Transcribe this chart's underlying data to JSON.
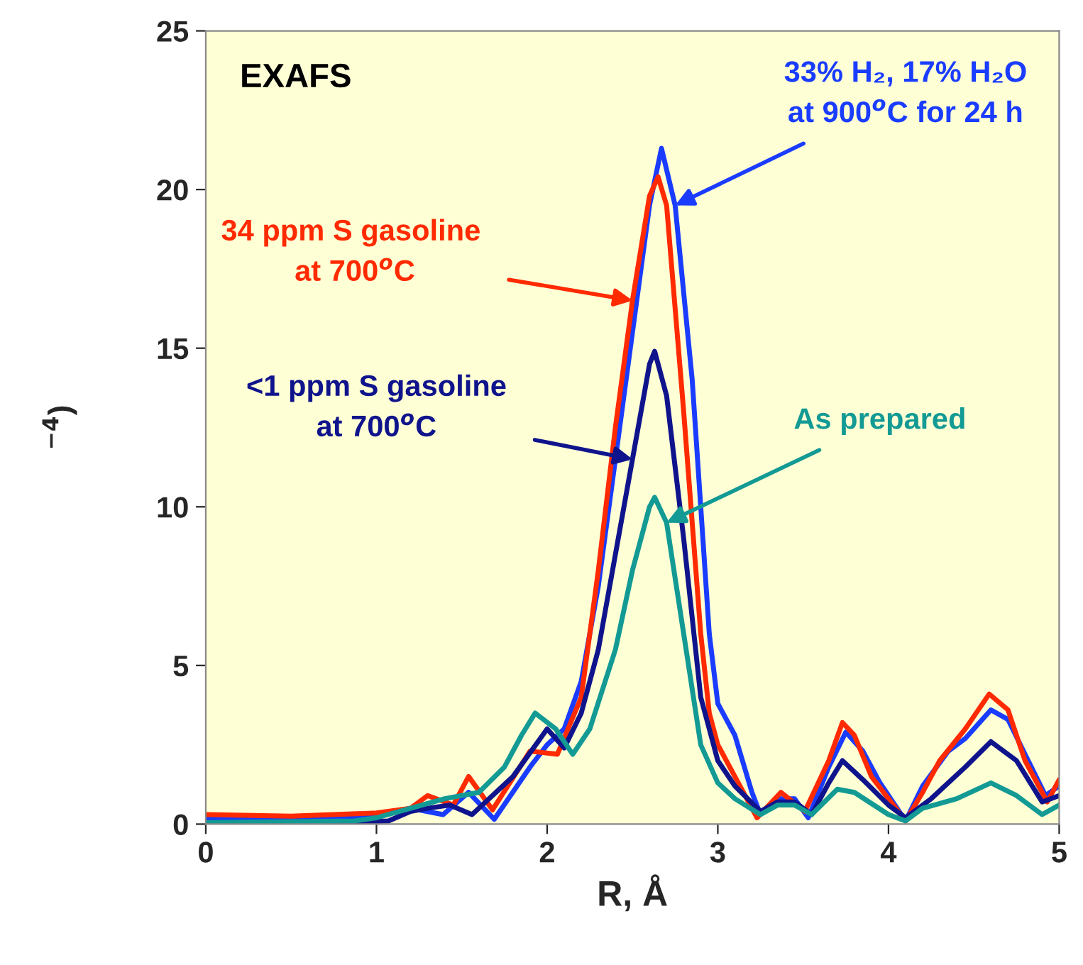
{
  "chart_data": {
    "type": "line",
    "xlabel": "R, Å",
    "ylabel": "$^{−4}$)",
    "xlim": [
      0,
      5
    ],
    "xticks": [
      0,
      1,
      2,
      3,
      4,
      5
    ],
    "ylim": [
      0,
      25
    ],
    "yticks": [
      0,
      5,
      10,
      15,
      20,
      25
    ],
    "grid": false,
    "marker": "none",
    "line_style": "solid",
    "series": [
      {
        "color": "#1a3cff",
        "x": [
          0,
          0.5,
          0.9,
          1.0,
          1.2,
          1.39,
          1.54,
          1.69,
          1.9,
          2.0,
          2.1,
          2.2,
          2.3,
          2.4,
          2.5,
          2.6,
          2.67,
          2.75,
          2.85,
          2.95,
          3.0,
          3.1,
          3.2,
          3.25,
          3.35,
          3.45,
          3.53,
          3.65,
          3.75,
          3.85,
          3.95,
          4.1,
          4.2,
          4.35,
          4.45,
          4.6,
          4.7,
          4.8,
          4.92,
          5.0
        ],
        "values": [
          0.2,
          0.2,
          0.2,
          0.3,
          0.5,
          0.3,
          1.0,
          0.15,
          1.8,
          2.5,
          3.0,
          4.5,
          7.5,
          11.5,
          15.5,
          19.5,
          21.3,
          19.5,
          14,
          6,
          3.8,
          2.8,
          1.0,
          0.3,
          0.8,
          0.8,
          0.2,
          1.8,
          2.9,
          2.3,
          1.3,
          0.1,
          1.2,
          2.3,
          2.7,
          3.6,
          3.3,
          2.2,
          0.9,
          1.2
        ]
      },
      {
        "color": "#ff2a00",
        "x": [
          0,
          0.5,
          1.0,
          1.2,
          1.3,
          1.45,
          1.54,
          1.68,
          1.9,
          2.06,
          2.2,
          2.3,
          2.4,
          2.5,
          2.6,
          2.65,
          2.7,
          2.8,
          2.9,
          2.95,
          3.0,
          3.1,
          3.23,
          3.37,
          3.51,
          3.65,
          3.73,
          3.8,
          3.9,
          4.0,
          4.1,
          4.2,
          4.3,
          4.45,
          4.59,
          4.7,
          4.8,
          4.93,
          5.0
        ],
        "values": [
          0.3,
          0.25,
          0.35,
          0.5,
          0.9,
          0.6,
          1.5,
          0.45,
          2.3,
          2.2,
          4,
          8,
          12.5,
          16.5,
          19.8,
          20.4,
          19.5,
          13,
          6,
          3.5,
          2.5,
          1.5,
          0.2,
          1.0,
          0.4,
          2.0,
          3.2,
          2.8,
          1.5,
          0.8,
          0.1,
          1.0,
          2.0,
          3.0,
          4.1,
          3.6,
          2.0,
          0.7,
          1.4
        ]
      },
      {
        "color": "#10148c",
        "x": [
          0,
          0.8,
          1.07,
          1.2,
          1.3,
          1.43,
          1.56,
          1.8,
          2.0,
          2.1,
          2.2,
          2.3,
          2.4,
          2.5,
          2.6,
          2.63,
          2.7,
          2.8,
          2.9,
          3.0,
          3.1,
          3.25,
          3.35,
          3.45,
          3.55,
          3.65,
          3.73,
          3.85,
          4.0,
          4.1,
          4.25,
          4.45,
          4.6,
          4.75,
          4.9,
          5.0
        ],
        "values": [
          0.05,
          0.05,
          0.1,
          0.4,
          0.5,
          0.6,
          0.3,
          1.5,
          3.0,
          2.4,
          3.5,
          5.5,
          8.5,
          11.5,
          14.5,
          14.9,
          13.5,
          9,
          4,
          2.0,
          1.2,
          0.4,
          0.7,
          0.7,
          0.3,
          1.3,
          2.0,
          1.4,
          0.6,
          0.2,
          0.8,
          1.8,
          2.6,
          2.0,
          0.7,
          0.9
        ]
      },
      {
        "color": "#139a94",
        "x": [
          0,
          0.87,
          1.0,
          1.2,
          1.4,
          1.6,
          1.75,
          1.85,
          1.93,
          2.05,
          2.15,
          2.25,
          2.4,
          2.5,
          2.6,
          2.63,
          2.7,
          2.8,
          2.9,
          3.0,
          3.1,
          3.25,
          3.35,
          3.45,
          3.55,
          3.7,
          3.8,
          4.0,
          4.1,
          4.2,
          4.4,
          4.6,
          4.75,
          4.9,
          5.0
        ],
        "values": [
          0.05,
          0.1,
          0.2,
          0.5,
          0.8,
          1.0,
          1.8,
          2.8,
          3.5,
          3.0,
          2.2,
          3.0,
          5.5,
          8,
          10.0,
          10.3,
          9.5,
          6,
          2.5,
          1.3,
          0.8,
          0.3,
          0.6,
          0.6,
          0.3,
          1.1,
          1.0,
          0.3,
          0.1,
          0.5,
          0.8,
          1.3,
          0.9,
          0.3,
          0.6
        ]
      }
    ],
    "annotations": [
      {
        "text": "33% H₂, 17% H₂O\nat 900$^{o}$C for 24 h",
        "x": 2.75,
        "y": 19.5
      },
      {
        "text": "34 ppm S gasoline\n at 700$^{o}$C",
        "x": 2.5,
        "y": 16.5
      },
      {
        "text": "<1 ppm S gasoline\nat 700$^{o}$C",
        "x": 2.5,
        "y": 11.5
      },
      {
        "text": "As prepared",
        "x": 2.7,
        "y": 9.5
      },
      "EXAFS"
    ]
  }
}
